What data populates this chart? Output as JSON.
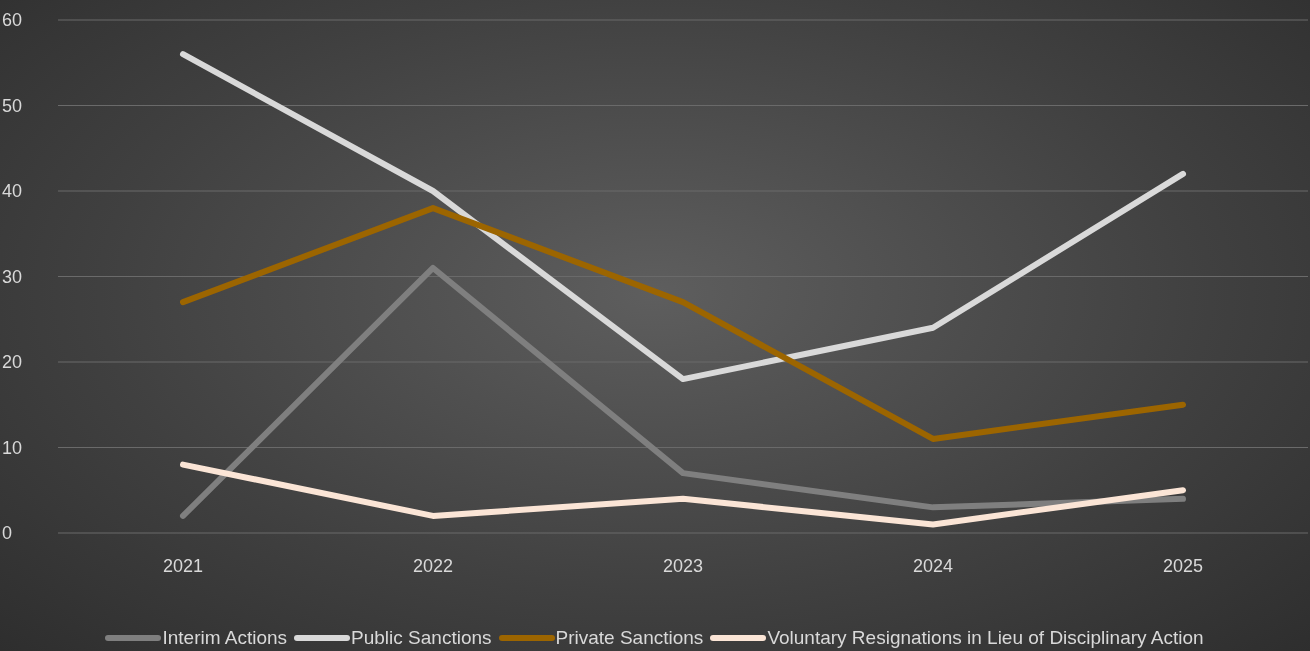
{
  "chart_data": {
    "type": "line",
    "categories": [
      "2021",
      "2022",
      "2023",
      "2024",
      "2025"
    ],
    "series": [
      {
        "name": "Interim Actions",
        "color": "#7f7f7f",
        "values": [
          2,
          31,
          7,
          3,
          4
        ]
      },
      {
        "name": "Public Sanctions",
        "color": "#d9d9d9",
        "values": [
          56,
          40,
          18,
          24,
          42
        ]
      },
      {
        "name": "Private Sanctions",
        "color": "#9c6500",
        "values": [
          27,
          38,
          27,
          11,
          15
        ]
      },
      {
        "name": "Voluntary Resignations in Lieu of Disciplinary Action",
        "color": "#fbe5d6",
        "values": [
          8,
          2,
          4,
          1,
          5
        ]
      }
    ],
    "ylim": [
      0,
      60
    ],
    "yticks": [
      0,
      10,
      20,
      30,
      40,
      50,
      60
    ],
    "grid": "y",
    "legend": "bottom",
    "marker": "none",
    "line_style": "solid"
  }
}
